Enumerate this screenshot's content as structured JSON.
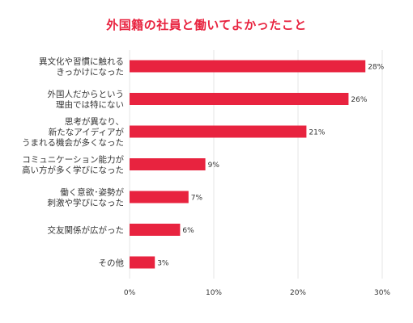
{
  "chart_data": {
    "type": "bar",
    "orientation": "horizontal",
    "title": "外国籍の社員と働いてよかったこと",
    "categories": [
      [
        "異文化や習慣に触れる",
        "きっかけになった"
      ],
      [
        "外国人だからという",
        "理由では特にない"
      ],
      [
        "思考が異なり、",
        "新たなアイディアが",
        "うまれる機会が多くなった"
      ],
      [
        "コミュニケーション能力が",
        "高い方が多く学びになった"
      ],
      [
        "働く意欲･姿勢が",
        "刺激や学びになった"
      ],
      [
        "交友関係が広がった"
      ],
      [
        "その他"
      ]
    ],
    "values": [
      28,
      26,
      21,
      9,
      7,
      6,
      3
    ],
    "value_labels": [
      "28%",
      "26%",
      "21%",
      "9%",
      "7%",
      "6%",
      "3%"
    ],
    "xlim": [
      0,
      30
    ],
    "xticks": [
      0,
      10,
      20,
      30
    ],
    "xtick_labels": [
      "0%",
      "10%",
      "20%",
      "30%"
    ],
    "grid": true,
    "bar_color": "#e8233f",
    "title_color": "#e8233f"
  }
}
